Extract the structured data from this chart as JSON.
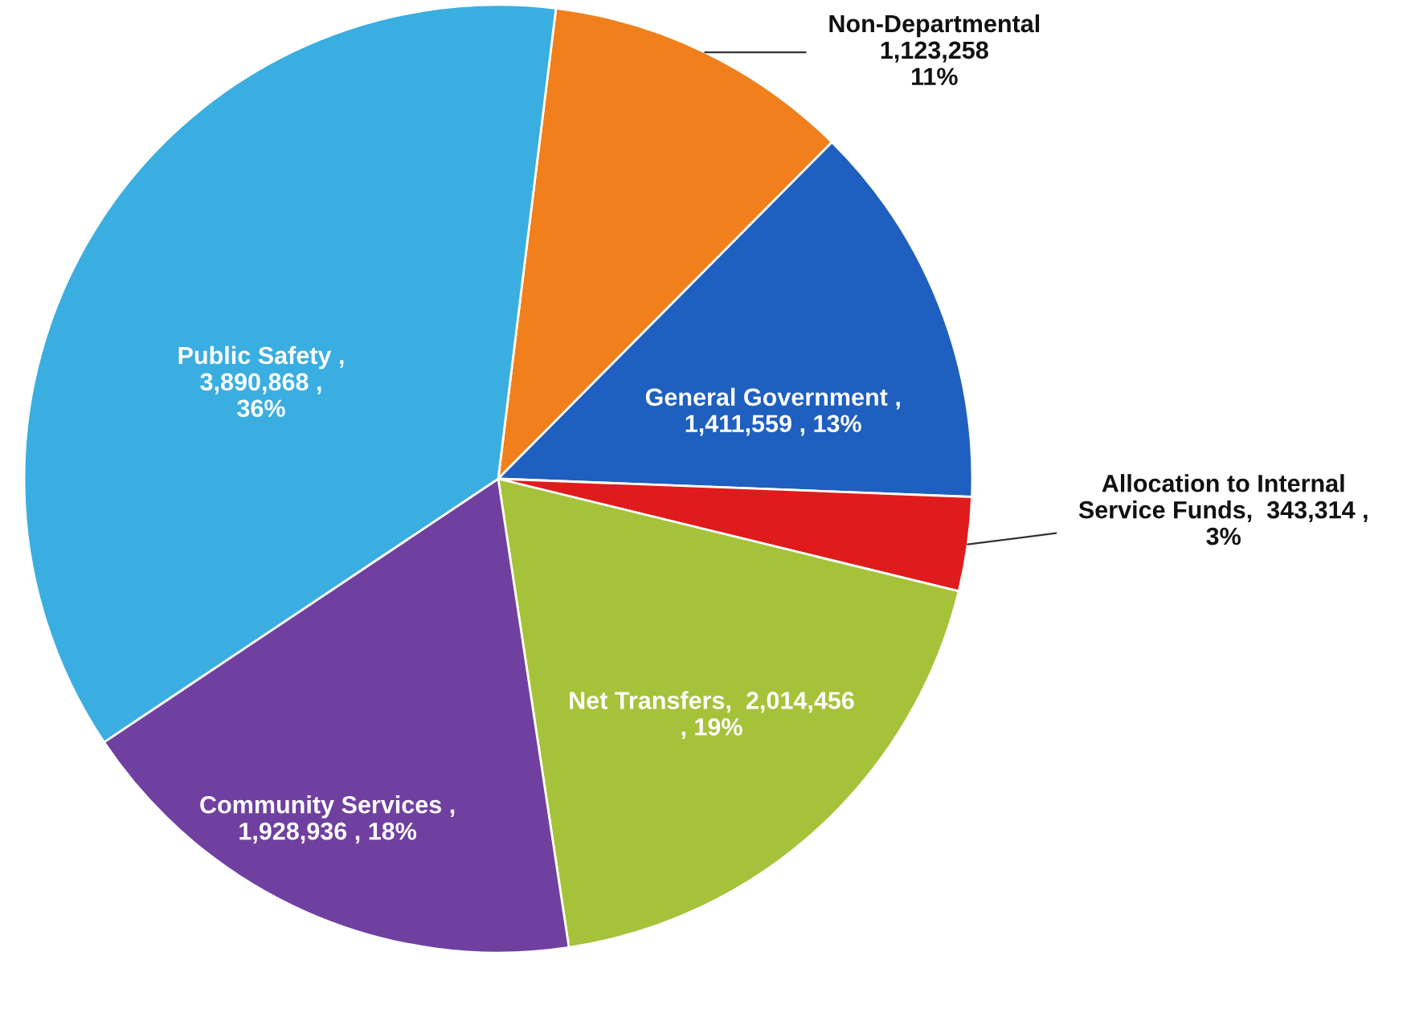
{
  "chart_data": {
    "type": "pie",
    "categories": [
      "Non-Departmental",
      "General Government",
      "Allocation to Internal\nService Funds",
      "Net Transfers",
      "Community Services",
      "Public Safety"
    ],
    "values": [
      1123258,
      1411559,
      343314,
      2014456,
      1928936,
      3890868
    ],
    "colors": [
      "#f07f1c",
      "#1f5fbf",
      "#e01b1b",
      "#a6c23a",
      "#7040a0",
      "#3aaee0"
    ],
    "value_labels": [
      "\n1,123,258\n11%",
      " ,\n1,411,559 , 13%",
      ",  343,314 ,\n3%",
      ",  2,014,456\n, 19%",
      " ,\n1,928,936 , 18%",
      " ,\n3,890,868 ,\n36%"
    ]
  }
}
